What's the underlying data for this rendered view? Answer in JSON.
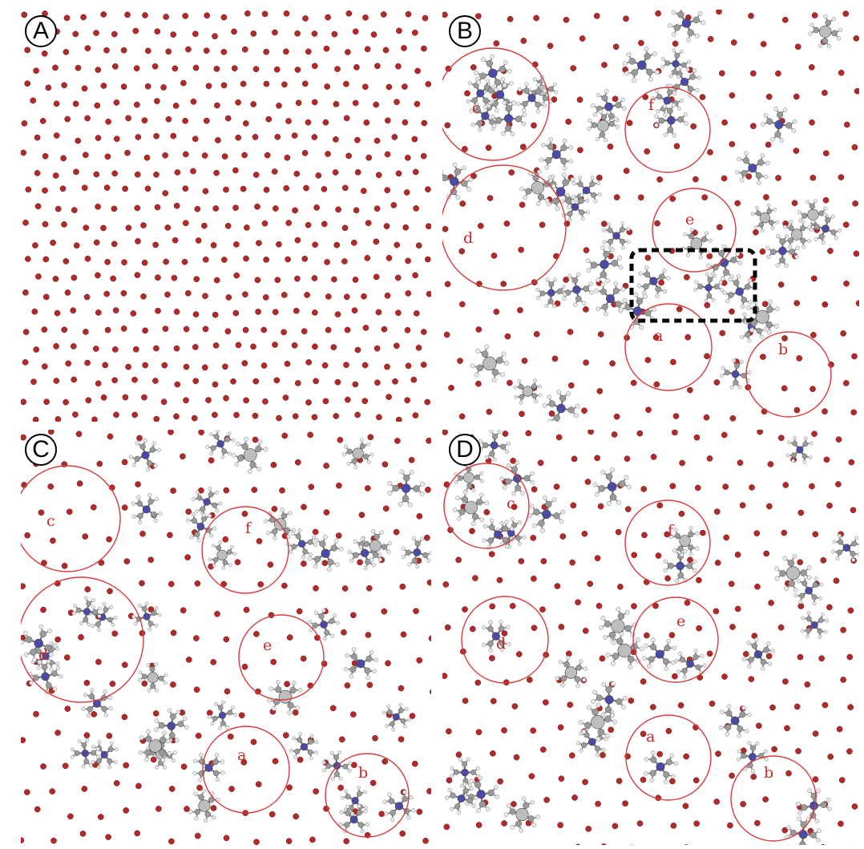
{
  "figure": {
    "panels": [
      {
        "id": "A",
        "label": "A",
        "regions": []
      },
      {
        "id": "B",
        "label": "B",
        "regions": [
          "a",
          "b",
          "c",
          "d",
          "e",
          "f"
        ],
        "highlight": "dashed-box"
      },
      {
        "id": "C",
        "label": "C",
        "regions": [
          "a",
          "b",
          "c",
          "d",
          "e",
          "f"
        ]
      },
      {
        "id": "D",
        "label": "D",
        "regions": [
          "a",
          "b",
          "c",
          "d",
          "e",
          "f"
        ]
      }
    ],
    "colors": {
      "oxygen_atom": "#b02a2a",
      "carbon_atom": "#9a9a9a",
      "nitrogen_atom": "#4a4aa8",
      "hydrogen_atom": "#e8e8e8",
      "region_circle": "#d93a3a",
      "highlight_box": "#000000"
    },
    "icons": {
      "oxygen": "red-sphere-icon",
      "molecule": "ball-and-stick-molecule-icon"
    }
  }
}
